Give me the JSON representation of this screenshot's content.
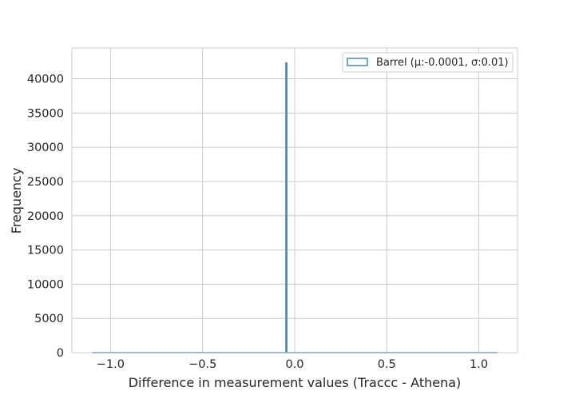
{
  "chart_data": {
    "type": "histogram",
    "title": "",
    "xlabel": "Difference in measurement values (Traccc - Athena)",
    "ylabel": "Frequency",
    "xlim": [
      -1.21,
      1.21
    ],
    "ylim": [
      0,
      44500
    ],
    "xticks": [
      -1.0,
      -0.5,
      0.0,
      0.5,
      1.0
    ],
    "xtick_labels": [
      "−1.0",
      "−0.5",
      "0.0",
      "0.5",
      "1.0"
    ],
    "yticks": [
      0,
      5000,
      10000,
      15000,
      20000,
      25000,
      30000,
      35000,
      40000
    ],
    "ytick_labels": [
      "0",
      "5000",
      "10000",
      "15000",
      "20000",
      "25000",
      "30000",
      "35000",
      "40000"
    ],
    "grid": true,
    "legend_position": "top-right",
    "histtype": "step",
    "series": [
      {
        "name": "Barrel (μ:-0.0001, σ:0.01)",
        "color": "#4c8ab4",
        "bin_range": [
          -1.1,
          1.1
        ],
        "peak_x": -0.045,
        "peak_count": 42300,
        "baseline_count": 0
      }
    ]
  }
}
